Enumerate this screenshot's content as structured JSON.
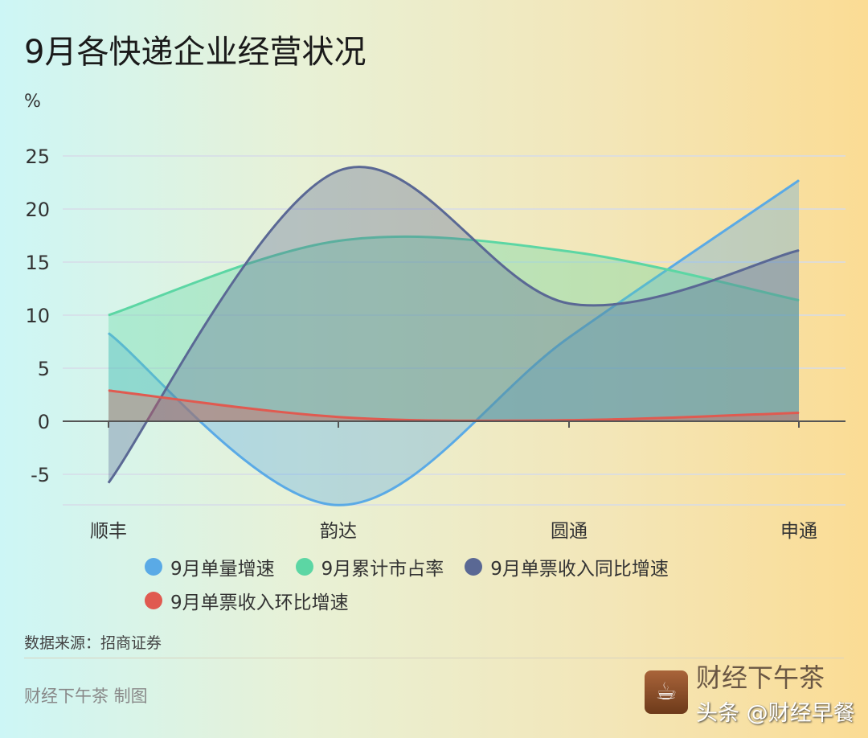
{
  "title": "9月各快递企业经营状况",
  "chart_data": {
    "type": "area",
    "ylabel": "%",
    "categories": [
      "顺丰",
      "韵达",
      "圆通",
      "申通"
    ],
    "ylim": [
      -8,
      25
    ],
    "yticks": [
      25,
      20,
      15,
      10,
      5,
      0,
      -5
    ],
    "grid": true,
    "legend_position": "bottom",
    "series": [
      {
        "name": "9月单量增速",
        "color": "#5aaae6",
        "values": [
          8.3,
          -7.9,
          7.9,
          22.7
        ]
      },
      {
        "name": "9月累计市占率",
        "color": "#5cd6a4",
        "values": [
          10.0,
          17.0,
          16.0,
          11.4
        ]
      },
      {
        "name": "9月单票收入同比增速",
        "color": "#5a6894",
        "values": [
          -5.8,
          23.6,
          11.1,
          16.1
        ]
      },
      {
        "name": "9月单票收入环比增速",
        "color": "#e05a50",
        "values": [
          2.9,
          0.4,
          0.1,
          0.8
        ]
      }
    ]
  },
  "source": "数据来源：招商证券",
  "credit": "财经下午茶 制图",
  "logo_text": "财经下午茶",
  "watermark": "头条 @财经早餐"
}
